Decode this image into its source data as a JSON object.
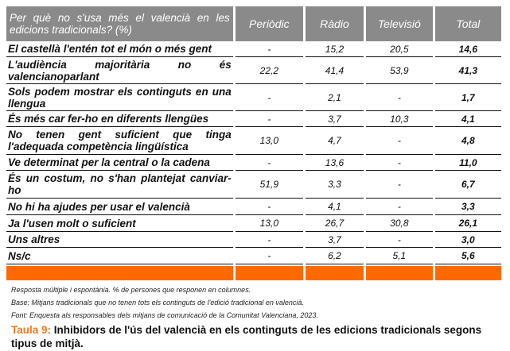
{
  "table": {
    "headers": [
      "Per què no s'usa més el valencià en les edicions tradicionals? (%)",
      "Periòdic",
      "Ràdio",
      "Televisió",
      "Total"
    ],
    "rows": [
      [
        "El castellà l'entén tot el món o més gent",
        "-",
        "15,2",
        "20,5",
        "14,6"
      ],
      [
        "L'audiència majoritària no és valencianoparlant",
        "22,2",
        "41,4",
        "53,9",
        "41,3"
      ],
      [
        "Sols podem mostrar els continguts en una llengua",
        "-",
        "2,1",
        "-",
        "1,7"
      ],
      [
        "És més car fer-ho en diferents llengües",
        "-",
        "3,7",
        "10,3",
        "4,1"
      ],
      [
        "No tenen gent suficient que tinga l'adequada competència lingüística",
        "13,0",
        "4,7",
        "-",
        "4,8"
      ],
      [
        "Ve determinat per la central o la cadena",
        "-",
        "13,6",
        "-",
        "11,0"
      ],
      [
        "És un costum, no s'han plantejat canviar-ho",
        "51,9",
        "3,3",
        "-",
        "6,7"
      ],
      [
        "No hi ha ajudes per usar el valencià",
        "-",
        "4,1",
        "-",
        "3,3"
      ],
      [
        "Ja l'usen molt o suficient",
        "13,0",
        "26,7",
        "30,8",
        "26,1"
      ],
      [
        "Uns altres",
        "-",
        "3,7",
        "-",
        "3,0"
      ],
      [
        "Ns/c",
        "-",
        "6,2",
        "5,1",
        "5,6"
      ]
    ]
  },
  "notes": [
    "Resposta múltiple i espontània. % de persones que responen en columnes.",
    "Base: Mitjans tradicionals que no tenen tots els continguts de l'edició tradicional en valencià.",
    "Font: Enquesta als responsables dels mitjans de comunicació de la Comunitat Valenciana, 2023."
  ],
  "caption": {
    "number": "Taula 9:",
    "text": " Inhibidors de l'ús del valencià en els continguts de les edicions tradicionals segons tipus de mitjà."
  }
}
